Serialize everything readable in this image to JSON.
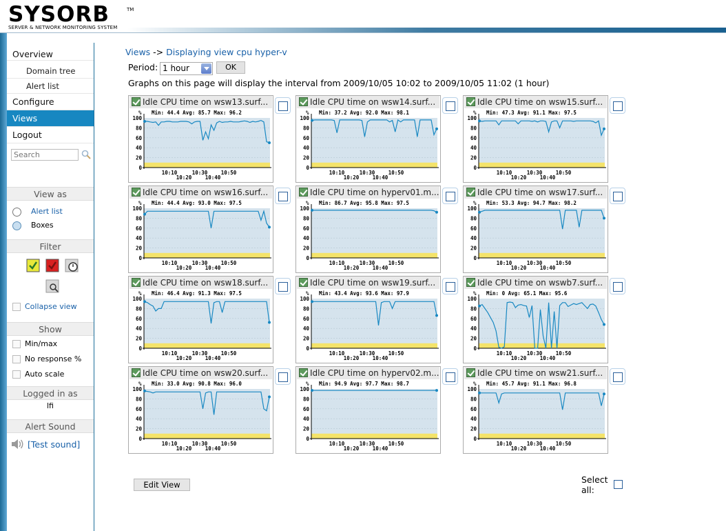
{
  "logo": {
    "main": "SYSORB",
    "tm": "TM",
    "subtitle": "SERVER & NETWORK MONITORING SYSTEM"
  },
  "nav": {
    "overview": "Overview",
    "domain_tree": "Domain tree",
    "alert_list": "Alert list",
    "configure": "Configure",
    "views": "Views",
    "logout": "Logout"
  },
  "search": {
    "placeholder": "Search"
  },
  "view_as": {
    "title": "View as",
    "alert_list": "Alert list",
    "boxes": "Boxes",
    "selected": "Boxes"
  },
  "filter": {
    "title": "Filter",
    "collapse": "Collapse view"
  },
  "show": {
    "title": "Show",
    "minmax": "Min/max",
    "no_response": "No response %",
    "auto_scale": "Auto scale"
  },
  "logged_in": {
    "title": "Logged in as",
    "user": "lfi"
  },
  "alert_sound": {
    "title": "Alert Sound",
    "test": "[Test sound]"
  },
  "main": {
    "breadcrumb_root": "Views",
    "breadcrumb_sep": " -> ",
    "breadcrumb_current": "Displaying view cpu hyper-v",
    "period_label": "Period:",
    "period_value": "1 hour",
    "ok_label": "OK",
    "interval_text": "Graphs on this page will display the interval from 2009/10/05 10:02 to 2009/10/05 11:02 (1 hour)",
    "edit_view": "Edit View",
    "select_all_1": "Select",
    "select_all_2": "all:"
  },
  "chart_axis": {
    "unit": "%",
    "y_ticks": [
      "100",
      "80",
      "60",
      "40",
      "20",
      "0"
    ],
    "x_ticks_top": [
      "10:10",
      "10:30",
      "10:50"
    ],
    "x_ticks_bottom": [
      "10:20",
      "10:40"
    ]
  },
  "colors": {
    "plot_bg": "#d5e3ed",
    "band": "#f4e36a",
    "line": "#1888c2",
    "accent": "#1787c1"
  },
  "chart_data": [
    {
      "type": "line",
      "title": "Idle CPU time on wsw13.surf...",
      "min": "44.4",
      "avg": "85.7",
      "max": "96.2",
      "ylim": [
        0,
        100
      ],
      "values": [
        93,
        93,
        92,
        91,
        92,
        85,
        92,
        92,
        93,
        93,
        92,
        92,
        92,
        93,
        93,
        93,
        92,
        88,
        92,
        93,
        93,
        55,
        72,
        58,
        86,
        75,
        90,
        93,
        91,
        92,
        92,
        93,
        92,
        92,
        92,
        93,
        94,
        93,
        91,
        93,
        92,
        93,
        95,
        92,
        52,
        50
      ]
    },
    {
      "type": "line",
      "title": "Idle CPU time on wsw14.surf...",
      "min": "37.2",
      "avg": "92.0",
      "max": "98.1",
      "ylim": [
        0,
        100
      ],
      "values": [
        95,
        96,
        96,
        96,
        96,
        96,
        96,
        96,
        95,
        70,
        96,
        96,
        96,
        96,
        96,
        96,
        96,
        96,
        95,
        62,
        92,
        96,
        96,
        96,
        96,
        96,
        96,
        96,
        92,
        95,
        72,
        96,
        92,
        96,
        96,
        96,
        96,
        96,
        62,
        96,
        96,
        96,
        96,
        96,
        66,
        78
      ]
    },
    {
      "type": "line",
      "title": "Idle CPU time on wsw15.surf...",
      "min": "47.3",
      "avg": "91.1",
      "max": "97.5",
      "ylim": [
        0,
        100
      ],
      "values": [
        94,
        93,
        94,
        94,
        94,
        94,
        94,
        86,
        94,
        94,
        94,
        94,
        94,
        94,
        88,
        94,
        94,
        94,
        94,
        93,
        94,
        92,
        94,
        94,
        93,
        72,
        92,
        94,
        94,
        80,
        94,
        94,
        94,
        94,
        93,
        94,
        94,
        94,
        94,
        94,
        94,
        93,
        90,
        94,
        65,
        78
      ]
    },
    {
      "type": "line",
      "title": "Idle CPU time on wsw16.surf...",
      "min": "44.4",
      "avg": "93.0",
      "max": "97.5",
      "ylim": [
        0,
        100
      ],
      "values": [
        88,
        94,
        94,
        94,
        94,
        94,
        94,
        94,
        94,
        94,
        94,
        94,
        94,
        94,
        94,
        94,
        94,
        94,
        94,
        94,
        94,
        94,
        94,
        94,
        60,
        94,
        94,
        94,
        94,
        94,
        94,
        94,
        94,
        94,
        94,
        94,
        94,
        94,
        94,
        94,
        94,
        94,
        76,
        94,
        70,
        62
      ]
    },
    {
      "type": "line",
      "title": "Idle CPU time on hyperv01.m...",
      "min": "86.7",
      "avg": "95.8",
      "max": "97.5",
      "ylim": [
        0,
        100
      ],
      "values": [
        96,
        96,
        96,
        96,
        96,
        96,
        96,
        96,
        96,
        96,
        96,
        96,
        96,
        96,
        96,
        96,
        96,
        96,
        96,
        96,
        96,
        96,
        96,
        96,
        96,
        96,
        96,
        96,
        96,
        96,
        96,
        96,
        96,
        96,
        96,
        96,
        96,
        96,
        96,
        96,
        96,
        96,
        96,
        96,
        95,
        92
      ]
    },
    {
      "type": "line",
      "title": "Idle CPU time on wsw17.surf...",
      "min": "53.3",
      "avg": "94.7",
      "max": "98.2",
      "ylim": [
        0,
        100
      ],
      "values": [
        92,
        94,
        96,
        96,
        96,
        96,
        96,
        96,
        96,
        96,
        96,
        96,
        96,
        96,
        96,
        96,
        96,
        96,
        96,
        96,
        96,
        96,
        96,
        96,
        96,
        96,
        96,
        96,
        96,
        96,
        58,
        96,
        96,
        96,
        96,
        96,
        62,
        96,
        96,
        96,
        96,
        96,
        96,
        96,
        96,
        80
      ]
    },
    {
      "type": "line",
      "title": "Idle CPU time on wsw18.surf...",
      "min": "46.4",
      "avg": "91.3",
      "max": "97.5",
      "ylim": [
        0,
        100
      ],
      "values": [
        94,
        92,
        88,
        85,
        75,
        80,
        80,
        94,
        94,
        94,
        94,
        94,
        94,
        94,
        94,
        94,
        94,
        94,
        94,
        94,
        94,
        94,
        94,
        94,
        50,
        92,
        94,
        94,
        72,
        94,
        94,
        94,
        94,
        94,
        94,
        94,
        94,
        94,
        94,
        94,
        94,
        94,
        94,
        94,
        94,
        52
      ]
    },
    {
      "type": "line",
      "title": "Idle CPU time on wsw19.surf...",
      "min": "43.4",
      "avg": "93.6",
      "max": "97.9",
      "ylim": [
        0,
        100
      ],
      "values": [
        94,
        94,
        94,
        94,
        94,
        94,
        94,
        94,
        94,
        94,
        94,
        94,
        94,
        94,
        94,
        94,
        94,
        94,
        94,
        94,
        94,
        94,
        94,
        94,
        46,
        92,
        94,
        94,
        94,
        80,
        94,
        94,
        94,
        94,
        94,
        94,
        94,
        94,
        94,
        94,
        94,
        94,
        94,
        94,
        94,
        66
      ]
    },
    {
      "type": "line",
      "title": "Idle CPU time on wswb7.surf...",
      "min": "0",
      "avg": "65.1",
      "max": "95.6",
      "ylim": [
        0,
        100
      ],
      "values": [
        85,
        88,
        80,
        72,
        62,
        52,
        35,
        2,
        0,
        3,
        92,
        93,
        92,
        82,
        87,
        88,
        86,
        85,
        62,
        86,
        0,
        0,
        78,
        25,
        0,
        92,
        0,
        74,
        0,
        86,
        92,
        92,
        84,
        87,
        90,
        88,
        90,
        92,
        86,
        80,
        88,
        89,
        85,
        72,
        58,
        48
      ]
    },
    {
      "type": "line",
      "title": "Idle CPU time on wsw20.surf...",
      "min": "33.0",
      "avg": "90.8",
      "max": "96.0",
      "ylim": [
        0,
        100
      ],
      "values": [
        96,
        95,
        94,
        92,
        94,
        94,
        94,
        94,
        94,
        94,
        94,
        94,
        94,
        94,
        94,
        94,
        94,
        94,
        94,
        94,
        94,
        60,
        92,
        94,
        94,
        48,
        94,
        94,
        94,
        94,
        94,
        94,
        94,
        94,
        94,
        94,
        94,
        94,
        94,
        94,
        94,
        94,
        94,
        60,
        56,
        84
      ]
    },
    {
      "type": "line",
      "title": "Idle CPU time on hyperv02.m...",
      "min": "94.9",
      "avg": "97.7",
      "max": "98.7",
      "ylim": [
        0,
        100
      ],
      "values": [
        97,
        97,
        97,
        97,
        97,
        97,
        97,
        97,
        97,
        97,
        97,
        97,
        97,
        97,
        97,
        97,
        97,
        97,
        97,
        97,
        97,
        97,
        97,
        97,
        97,
        97,
        97,
        97,
        97,
        97,
        97,
        97,
        97,
        97,
        97,
        97,
        97,
        97,
        97,
        97,
        97,
        97,
        97,
        97,
        97,
        97
      ]
    },
    {
      "type": "line",
      "title": "Idle CPU time on wsw21.surf...",
      "min": "45.7",
      "avg": "91.1",
      "max": "96.8",
      "ylim": [
        0,
        100
      ],
      "values": [
        92,
        92,
        92,
        92,
        92,
        92,
        92,
        72,
        90,
        92,
        92,
        92,
        92,
        92,
        92,
        92,
        92,
        92,
        92,
        92,
        92,
        92,
        92,
        92,
        92,
        92,
        92,
        92,
        92,
        92,
        58,
        92,
        92,
        92,
        92,
        92,
        92,
        92,
        92,
        92,
        92,
        92,
        92,
        92,
        66,
        90
      ]
    }
  ]
}
